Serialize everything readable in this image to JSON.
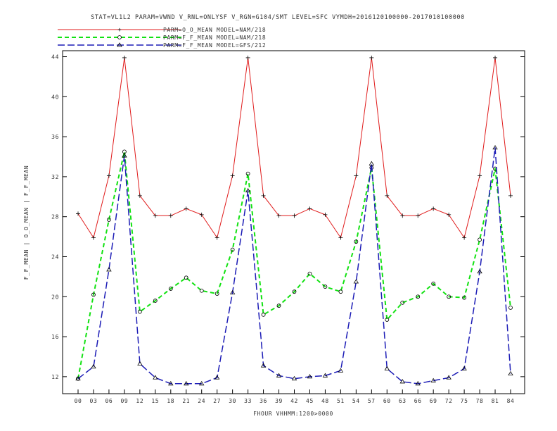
{
  "chart_data": {
    "type": "line",
    "title": "STAT=VL1L2 PARAM=VWND V_RNL=ONLYSF V_RGN=G104/SMT LEVEL=SFC VYMDH=2016120100000-2017010100000",
    "xlabel": "FHOUR VHHMM:1200>0000",
    "ylabel": "F_F_MEAN | O_O_MEAN | F_F_MEAN",
    "categories": [
      "00",
      "03",
      "06",
      "09",
      "12",
      "15",
      "18",
      "21",
      "24",
      "27",
      "30",
      "33",
      "36",
      "39",
      "42",
      "45",
      "48",
      "51",
      "54",
      "57",
      "60",
      "63",
      "66",
      "69",
      "72",
      "75",
      "78",
      "81",
      "84"
    ],
    "ylim": [
      10.3,
      44.6
    ],
    "yticks": [
      "12",
      "16",
      "20",
      "24",
      "28",
      "32",
      "36",
      "40",
      "44"
    ],
    "grid": false,
    "legend_position": "top-left",
    "series": [
      {
        "name": "PARM=O_O_MEAN MODEL=NAM/218",
        "color": "#e01b1b",
        "dash": "solid",
        "marker": "+",
        "values": [
          28.3,
          25.9,
          32.1,
          43.9,
          30.1,
          28.1,
          28.1,
          28.8,
          28.2,
          25.9,
          32.1,
          43.9,
          30.1,
          28.1,
          28.1,
          28.8,
          28.2,
          25.9,
          32.1,
          43.9,
          30.1,
          28.1,
          28.1,
          28.8,
          28.2,
          25.9,
          32.1,
          43.9,
          30.1
        ]
      },
      {
        "name": "PARM=F_F_MEAN MODEL=NAM/218",
        "color": "#12e212",
        "dash": "6,4",
        "marker": "circle",
        "values": [
          11.8,
          20.2,
          27.7,
          34.5,
          18.5,
          19.6,
          20.8,
          21.9,
          20.6,
          20.3,
          24.7,
          32.3,
          18.2,
          19.1,
          20.5,
          22.3,
          21.0,
          20.5,
          25.5,
          32.9,
          17.7,
          19.4,
          20.0,
          21.3,
          20.0,
          19.9,
          25.7,
          32.8,
          18.9
        ]
      },
      {
        "name": "PARM=F_F_MEAN MODEL=GFS/212",
        "color": "#1c1cb6",
        "dash": "10,4",
        "marker": "triangle",
        "values": [
          11.8,
          13.0,
          22.7,
          34.1,
          13.3,
          11.9,
          11.3,
          11.3,
          11.3,
          11.9,
          20.4,
          30.6,
          13.1,
          12.1,
          11.8,
          12.0,
          12.1,
          12.6,
          21.5,
          33.3,
          12.8,
          11.5,
          11.3,
          11.6,
          11.9,
          12.8,
          22.5,
          34.9,
          12.3
        ]
      }
    ]
  }
}
